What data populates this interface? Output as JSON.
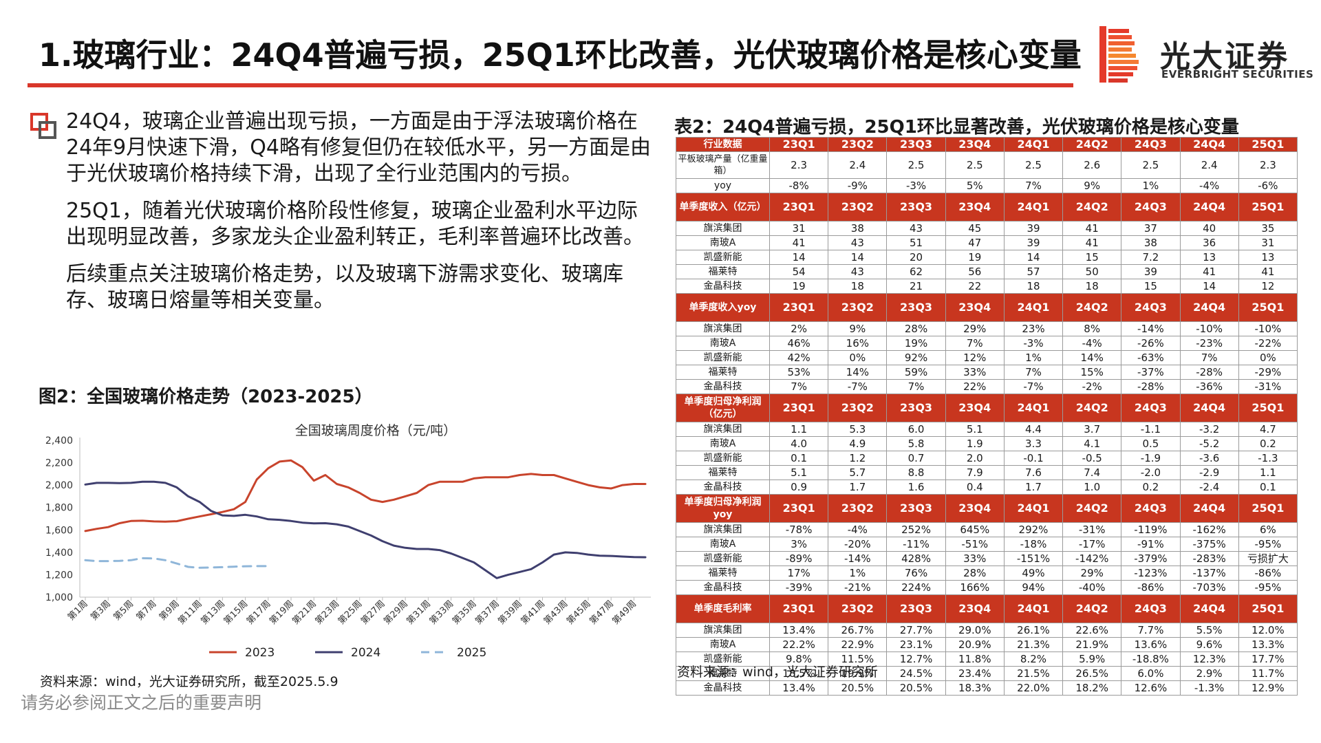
{
  "title": "1.玻璃行业：24Q4普遍亏损，25Q1环比改善，光伏玻璃价格是核心变量",
  "brand": {
    "cn": "光大证券",
    "en": "EVERBRIGHT SECURITIES",
    "accent": "#d9372a"
  },
  "paragraphs": [
    "24Q4，玻璃企业普遍出现亏损，一方面是由于浮法玻璃价格在24年9月快速下滑，Q4略有修复但仍在较低水平，另一方面是由于光伏玻璃价格持续下滑，出现了全行业范围内的亏损。",
    "25Q1，随着光伏玻璃价格阶段性修复，玻璃企业盈利水平边际出现明显改善，多家龙头企业盈利转正，毛利率普遍环比改善。",
    "后续重点关注玻璃价格走势，以及玻璃下游需求变化、玻璃库存、玻璃日熔量等相关变量。"
  ],
  "figure": {
    "caption": "图2：全国玻璃价格走势（2023-2025）",
    "source": "资料来源：wind，光大证券研究所，截至2025.5.9"
  },
  "disclaimer": "请务必参阅正文之后的重要声明",
  "table": {
    "caption": "表2：24Q4普遍亏损，25Q1环比显著改善，光伏玻璃价格是核心变量",
    "source": "资料来源：wind，光大证券研究所",
    "periods": [
      "23Q1",
      "23Q2",
      "23Q3",
      "23Q4",
      "24Q1",
      "24Q2",
      "24Q3",
      "24Q4",
      "25Q1"
    ],
    "header_color": "#c8361f",
    "sections": [
      {
        "header": "行业数据",
        "rows": [
          {
            "label": "平板玻璃产量（亿重量箱）",
            "tall": true,
            "values": [
              "2.3",
              "2.4",
              "2.5",
              "2.5",
              "2.5",
              "2.6",
              "2.5",
              "2.4",
              "2.3"
            ]
          },
          {
            "label": "yoy",
            "values": [
              "-8%",
              "-9%",
              "-3%",
              "5%",
              "7%",
              "9%",
              "1%",
              "-4%",
              "-6%"
            ]
          }
        ]
      },
      {
        "header": "单季度收入（亿元）",
        "rows": [
          {
            "label": "旗滨集团",
            "values": [
              "31",
              "38",
              "43",
              "45",
              "39",
              "41",
              "37",
              "40",
              "35"
            ]
          },
          {
            "label": "南玻A",
            "values": [
              "41",
              "43",
              "51",
              "47",
              "39",
              "41",
              "38",
              "36",
              "31"
            ]
          },
          {
            "label": "凯盛新能",
            "values": [
              "14",
              "14",
              "20",
              "19",
              "14",
              "15",
              "7.2",
              "13",
              "13"
            ]
          },
          {
            "label": "福莱特",
            "values": [
              "54",
              "43",
              "62",
              "56",
              "57",
              "50",
              "39",
              "41",
              "41"
            ]
          },
          {
            "label": "金晶科技",
            "values": [
              "19",
              "18",
              "21",
              "22",
              "18",
              "18",
              "15",
              "14",
              "12"
            ]
          }
        ]
      },
      {
        "header": "单季度收入yoy",
        "rows": [
          {
            "label": "旗滨集团",
            "values": [
              "2%",
              "9%",
              "28%",
              "29%",
              "23%",
              "8%",
              "-14%",
              "-10%",
              "-10%"
            ]
          },
          {
            "label": "南玻A",
            "values": [
              "46%",
              "16%",
              "19%",
              "7%",
              "-3%",
              "-4%",
              "-26%",
              "-23%",
              "-22%"
            ]
          },
          {
            "label": "凯盛新能",
            "values": [
              "42%",
              "0%",
              "92%",
              "12%",
              "1%",
              "14%",
              "-63%",
              "7%",
              "0%"
            ]
          },
          {
            "label": "福莱特",
            "values": [
              "53%",
              "14%",
              "59%",
              "33%",
              "7%",
              "15%",
              "-37%",
              "-28%",
              "-29%"
            ]
          },
          {
            "label": "金晶科技",
            "values": [
              "7%",
              "-7%",
              "7%",
              "22%",
              "-7%",
              "-2%",
              "-28%",
              "-36%",
              "-31%"
            ]
          }
        ]
      },
      {
        "header": "单季度归母净利润（亿元）",
        "rows": [
          {
            "label": "旗滨集团",
            "values": [
              "1.1",
              "5.3",
              "6.0",
              "5.1",
              "4.4",
              "3.7",
              "-1.1",
              "-3.2",
              "4.7"
            ]
          },
          {
            "label": "南玻A",
            "values": [
              "4.0",
              "4.9",
              "5.8",
              "1.9",
              "3.3",
              "4.1",
              "0.5",
              "-5.2",
              "0.2"
            ]
          },
          {
            "label": "凯盛新能",
            "values": [
              "0.1",
              "1.2",
              "0.7",
              "2.0",
              "-0.1",
              "-0.5",
              "-1.9",
              "-3.6",
              "-1.3"
            ]
          },
          {
            "label": "福莱特",
            "values": [
              "5.1",
              "5.7",
              "8.8",
              "7.9",
              "7.6",
              "7.4",
              "-2.0",
              "-2.9",
              "1.1"
            ]
          },
          {
            "label": "金晶科技",
            "values": [
              "0.9",
              "1.7",
              "1.6",
              "0.4",
              "1.7",
              "1.0",
              "0.2",
              "-2.4",
              "0.1"
            ]
          }
        ]
      },
      {
        "header": "单季度归母净利润yoy",
        "rows": [
          {
            "label": "旗滨集团",
            "values": [
              "-78%",
              "-4%",
              "252%",
              "645%",
              "292%",
              "-31%",
              "-119%",
              "-162%",
              "6%"
            ]
          },
          {
            "label": "南玻A",
            "values": [
              "3%",
              "-20%",
              "-11%",
              "-51%",
              "-18%",
              "-17%",
              "-91%",
              "-375%",
              "-95%"
            ]
          },
          {
            "label": "凯盛新能",
            "values": [
              "-89%",
              "-14%",
              "428%",
              "33%",
              "-151%",
              "-142%",
              "-379%",
              "-283%",
              "亏损扩大"
            ]
          },
          {
            "label": "福莱特",
            "values": [
              "17%",
              "1%",
              "76%",
              "28%",
              "49%",
              "29%",
              "-123%",
              "-137%",
              "-86%"
            ]
          },
          {
            "label": "金晶科技",
            "values": [
              "-39%",
              "-21%",
              "224%",
              "166%",
              "94%",
              "-40%",
              "-86%",
              "-703%",
              "-95%"
            ]
          }
        ]
      },
      {
        "header": "单季度毛利率",
        "rows": [
          {
            "label": "旗滨集团",
            "values": [
              "13.4%",
              "26.7%",
              "27.7%",
              "29.0%",
              "26.1%",
              "22.6%",
              "7.7%",
              "5.5%",
              "12.0%"
            ]
          },
          {
            "label": "南玻A",
            "values": [
              "22.2%",
              "22.9%",
              "23.1%",
              "20.9%",
              "21.3%",
              "21.9%",
              "13.6%",
              "9.6%",
              "13.3%"
            ]
          },
          {
            "label": "凯盛新能",
            "values": [
              "9.8%",
              "11.5%",
              "12.7%",
              "11.8%",
              "8.2%",
              "5.9%",
              "-18.8%",
              "12.3%",
              "17.7%"
            ]
          },
          {
            "label": "福莱特",
            "values": [
              "18.5%",
              "19.9%",
              "24.5%",
              "23.4%",
              "21.5%",
              "26.5%",
              "6.0%",
              "2.9%",
              "11.7%"
            ]
          },
          {
            "label": "金晶科技",
            "values": [
              "13.4%",
              "20.5%",
              "20.5%",
              "18.3%",
              "22.0%",
              "18.2%",
              "12.6%",
              "-1.3%",
              "12.9%"
            ]
          }
        ]
      }
    ]
  },
  "chart_data": {
    "type": "line",
    "title": "全国玻璃周度价格（元/吨）",
    "ylim": [
      1000,
      2400
    ],
    "yticks": [
      "1,000",
      "1,200",
      "1,400",
      "1,600",
      "1,800",
      "2,000",
      "2,200",
      "2,400"
    ],
    "xticks": [
      "第1周",
      "第3周",
      "第5周",
      "第7周",
      "第9周",
      "第11周",
      "第13周",
      "第15周",
      "第17周",
      "第19周",
      "第21周",
      "第23周",
      "第25周",
      "第27周",
      "第29周",
      "第31周",
      "第33周",
      "第35周",
      "第37周",
      "第39周",
      "第41周",
      "第43周",
      "第45周",
      "第47周",
      "第49周"
    ],
    "x": [
      1,
      2,
      3,
      4,
      5,
      6,
      7,
      8,
      9,
      10,
      11,
      12,
      13,
      14,
      15,
      16,
      17,
      18,
      19,
      20,
      21,
      22,
      23,
      24,
      25,
      26,
      27,
      28,
      29,
      30,
      31,
      32,
      33,
      34,
      35,
      36,
      37,
      38,
      39,
      40,
      41,
      42,
      43,
      44,
      45,
      46,
      47,
      48,
      49,
      50
    ],
    "legend_position": "bottom",
    "series": [
      {
        "name": "2023",
        "color": "#c8442c",
        "dash": "solid",
        "values": [
          1590,
          1610,
          1625,
          1660,
          1680,
          1682,
          1676,
          1674,
          1678,
          1700,
          1720,
          1740,
          1760,
          1785,
          1850,
          2050,
          2150,
          2210,
          2220,
          2160,
          2040,
          2090,
          2010,
          1980,
          1930,
          1870,
          1850,
          1870,
          1900,
          1930,
          2000,
          2030,
          2030,
          2030,
          2060,
          2070,
          2070,
          2070,
          2090,
          2100,
          2090,
          2090,
          2060,
          2030,
          2000,
          1980,
          1970,
          2000,
          2010,
          2010
        ]
      },
      {
        "name": "2024",
        "color": "#3f3f6f",
        "dash": "solid",
        "values": [
          2005,
          2020,
          2020,
          2018,
          2020,
          2030,
          2030,
          2020,
          1980,
          1900,
          1850,
          1770,
          1730,
          1725,
          1735,
          1720,
          1695,
          1690,
          1680,
          1665,
          1658,
          1660,
          1650,
          1630,
          1590,
          1550,
          1500,
          1460,
          1440,
          1430,
          1430,
          1420,
          1390,
          1350,
          1310,
          1240,
          1170,
          1200,
          1225,
          1250,
          1310,
          1380,
          1400,
          1395,
          1380,
          1370,
          1368,
          1362,
          1358,
          1356
        ]
      },
      {
        "name": "2025",
        "color": "#8fb6d9",
        "dash": "dashed",
        "values": [
          1330,
          1322,
          1322,
          1324,
          1330,
          1348,
          1345,
          1330,
          1300,
          1270,
          1262,
          1265,
          1268,
          1272,
          1276,
          1277,
          1277,
          null,
          null,
          null,
          null,
          null,
          null,
          null,
          null,
          null,
          null,
          null,
          null,
          null,
          null,
          null,
          null,
          null,
          null,
          null,
          null,
          null,
          null,
          null,
          null,
          null,
          null,
          null,
          null,
          null,
          null,
          null,
          null,
          null
        ]
      }
    ]
  }
}
